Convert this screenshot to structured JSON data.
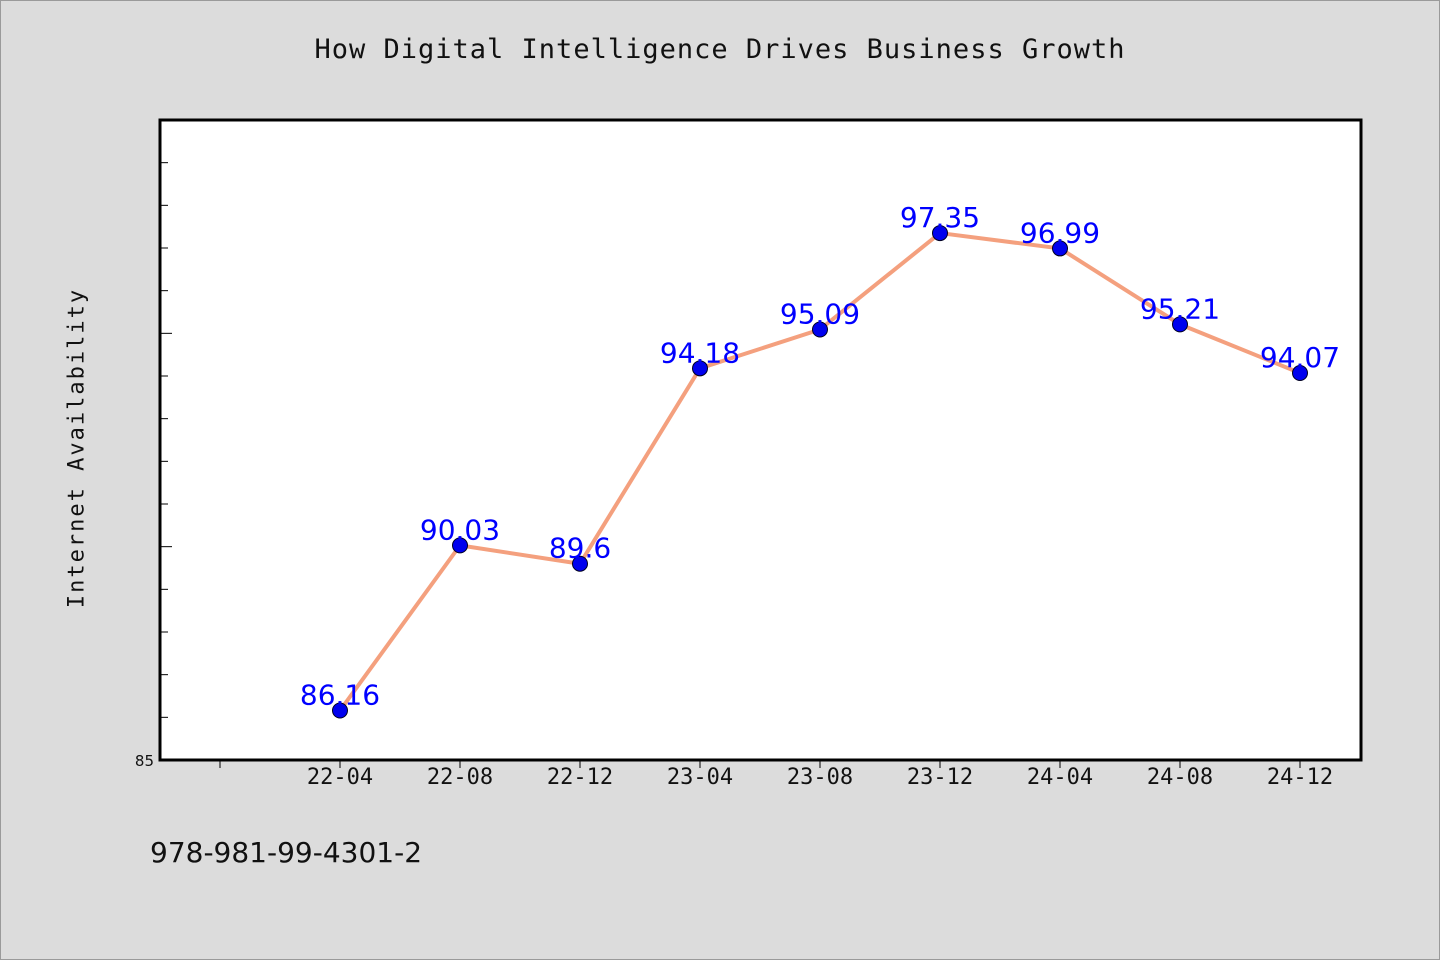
{
  "chart_data": {
    "type": "line",
    "title": "How Digital Intelligence Drives Business Growth",
    "xlabel": "",
    "ylabel": "Internet Availability",
    "categories": [
      "22-04",
      "22-08",
      "22-12",
      "23-04",
      "23-08",
      "23-12",
      "24-04",
      "24-08",
      "24-12"
    ],
    "series": [
      {
        "values": [
          86.16,
          90.03,
          89.6,
          94.18,
          95.09,
          97.35,
          96.99,
          95.21,
          94.07
        ],
        "labels": [
          "86.16",
          "90.03",
          "89.6",
          "94.18",
          "95.09",
          "97.35",
          "96.99",
          "95.21",
          "94.07"
        ],
        "line_color": "#f4a07e",
        "marker_color": "#0000ee",
        "label_color": "#0000ff"
      }
    ],
    "ylim": [
      85,
      100
    ],
    "y_tick_label": "85",
    "grid": false,
    "legend": "none"
  },
  "footer_text": "978-981-99-4301-2",
  "colors": {
    "background": "#dcdcdc",
    "plot_area": "#ffffff",
    "axes": "#000000"
  }
}
